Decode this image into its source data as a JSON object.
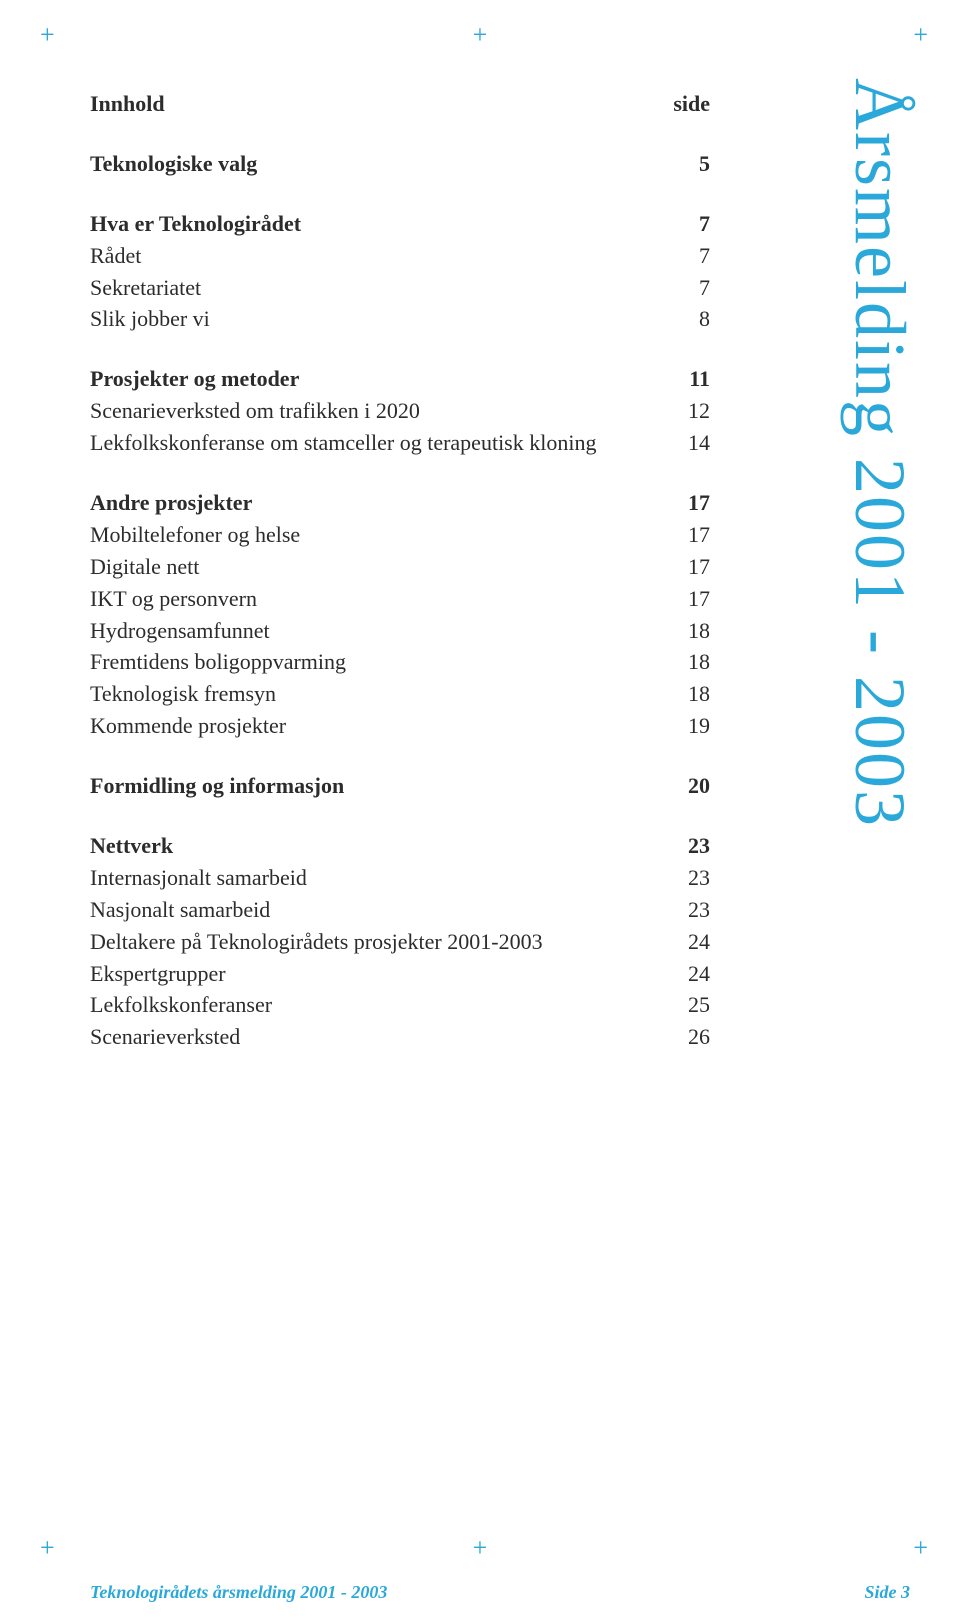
{
  "colors": {
    "accent": "#2aa8d9",
    "text": "#2c2c2c",
    "background": "#ffffff"
  },
  "typography": {
    "body_fontsize": 22,
    "vertical_title_fontsize": 72,
    "footer_fontsize": 18,
    "font_family": "Georgia, serif"
  },
  "vertical_title": "Årsmelding 2001 - 2003",
  "toc": {
    "header": {
      "label": "Innhold",
      "page": "side"
    },
    "sections": [
      {
        "type": "gap"
      },
      {
        "type": "bold",
        "label": "Teknologiske valg",
        "page": "5"
      },
      {
        "type": "gap"
      },
      {
        "type": "bold",
        "label": "Hva er Teknologirådet",
        "page": "7"
      },
      {
        "type": "normal",
        "label": "Rådet",
        "page": "7"
      },
      {
        "type": "normal",
        "label": "Sekretariatet",
        "page": "7"
      },
      {
        "type": "normal",
        "label": "Slik jobber vi",
        "page": "8"
      },
      {
        "type": "gap"
      },
      {
        "type": "bold",
        "label": "Prosjekter og metoder",
        "page": "11"
      },
      {
        "type": "normal",
        "label": "Scenarieverksted om trafikken i 2020",
        "page": "12"
      },
      {
        "type": "normal",
        "label": "Lekfolkskonferanse om stamceller og terapeutisk kloning",
        "page": "14"
      },
      {
        "type": "gap"
      },
      {
        "type": "bold",
        "label": "Andre prosjekter",
        "page": "17"
      },
      {
        "type": "normal",
        "label": "Mobiltelefoner og helse",
        "page": "17"
      },
      {
        "type": "normal",
        "label": "Digitale nett",
        "page": "17"
      },
      {
        "type": "normal",
        "label": "IKT og personvern",
        "page": "17"
      },
      {
        "type": "normal",
        "label": "Hydrogensamfunnet",
        "page": "18"
      },
      {
        "type": "normal",
        "label": "Fremtidens boligoppvarming",
        "page": "18"
      },
      {
        "type": "normal",
        "label": "Teknologisk fremsyn",
        "page": "18"
      },
      {
        "type": "normal",
        "label": "Kommende prosjekter",
        "page": "19"
      },
      {
        "type": "gap"
      },
      {
        "type": "bold",
        "label": "Formidling og informasjon",
        "page": "20"
      },
      {
        "type": "gap"
      },
      {
        "type": "bold",
        "label": "Nettverk",
        "page": "23"
      },
      {
        "type": "normal",
        "label": "Internasjonalt samarbeid",
        "page": "23"
      },
      {
        "type": "normal",
        "label": "Nasjonalt samarbeid",
        "page": "23"
      },
      {
        "type": "normal",
        "label": "Deltakere på Teknologirådets prosjekter 2001-2003",
        "page": "24"
      },
      {
        "type": "normal",
        "label": "Ekspertgrupper",
        "page": "24"
      },
      {
        "type": "normal",
        "label": "Lekfolkskonferanser",
        "page": "25"
      },
      {
        "type": "normal",
        "label": "Scenarieverksted",
        "page": "26"
      }
    ]
  },
  "footer": {
    "left": "Teknologirådets årsmelding 2001 - 2003",
    "right": "Side 3"
  },
  "crop_mark_glyph": "+"
}
